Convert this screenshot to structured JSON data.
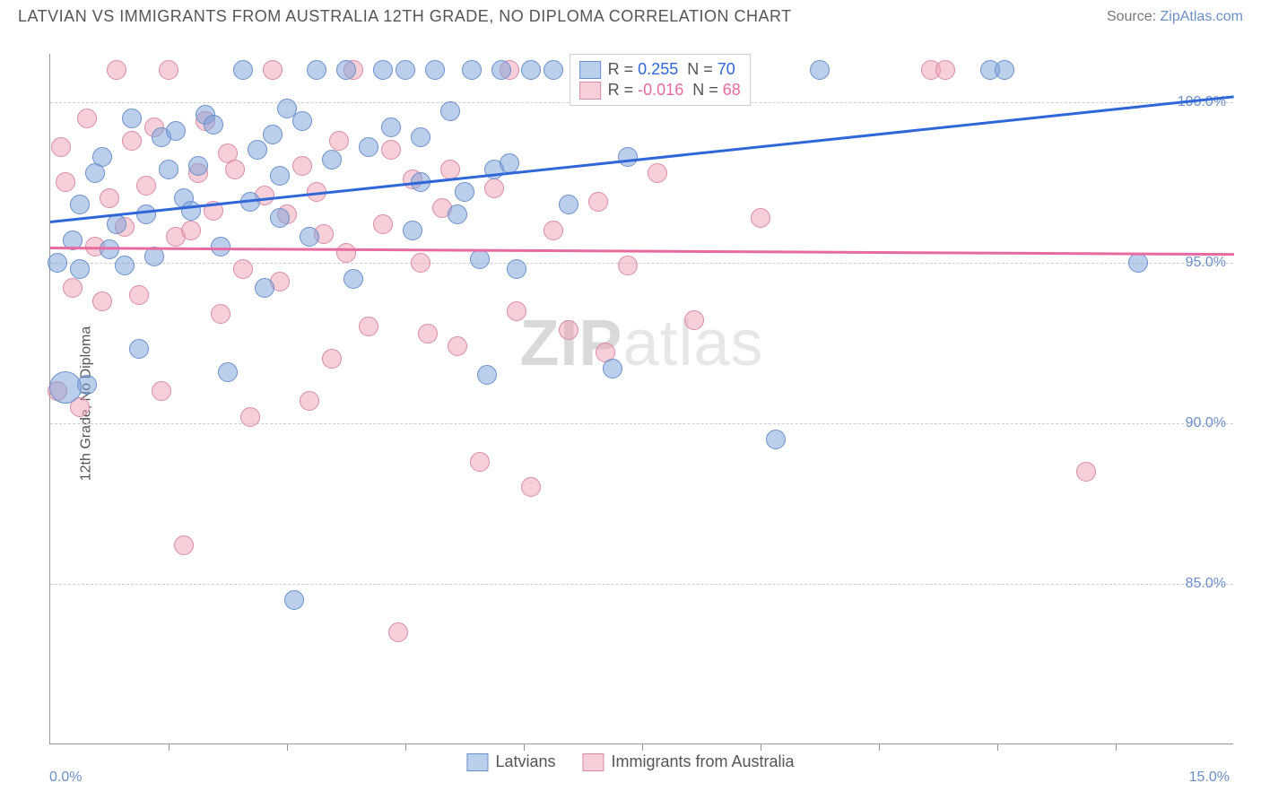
{
  "title": "LATVIAN VS IMMIGRANTS FROM AUSTRALIA 12TH GRADE, NO DIPLOMA CORRELATION CHART",
  "source_label": "Source: ",
  "source_link": "ZipAtlas.com",
  "ylabel": "12th Grade, No Diploma",
  "watermark_bold": "ZIP",
  "watermark_rest": "atlas",
  "colors": {
    "blue_fill": "rgba(120,160,220,0.5)",
    "blue_stroke": "#6b8fc9",
    "pink_fill": "rgba(240,160,180,0.5)",
    "pink_stroke": "#d98ba5",
    "blue_line": "#2f67d8",
    "pink_line": "#e76aa0",
    "axis_text": "#6b8fc9",
    "grid": "#cccccc"
  },
  "chart": {
    "type": "scatter",
    "xlim": [
      0,
      16
    ],
    "ylim": [
      80,
      101.5
    ],
    "x_display_min": "0.0%",
    "x_display_max": "15.0%",
    "ytick_values": [
      85,
      90,
      95,
      100
    ],
    "ytick_labels": [
      "85.0%",
      "90.0%",
      "95.0%",
      "100.0%"
    ],
    "xtick_positions": [
      1.6,
      3.2,
      4.8,
      6.4,
      8.0,
      9.6,
      11.2,
      12.8,
      14.4
    ],
    "point_radius": 11,
    "background_color": "#ffffff"
  },
  "correlation_box": {
    "rows": [
      {
        "swatch": "blue",
        "r_label": "R =",
        "r": "0.255",
        "n_label": "N =",
        "n": "70"
      },
      {
        "swatch": "pink",
        "r_label": "R =",
        "r": "-0.016",
        "n_label": "N =",
        "n": "68"
      }
    ]
  },
  "legend_bottom": {
    "items": [
      {
        "swatch": "blue",
        "label": "Latvians"
      },
      {
        "swatch": "pink",
        "label": "Immigrants from Australia"
      }
    ]
  },
  "trend_lines": {
    "blue": {
      "x1": 0,
      "y1": 96.3,
      "x2": 16,
      "y2": 100.2
    },
    "pink": {
      "x1": 0,
      "y1": 95.5,
      "x2": 16,
      "y2": 95.3
    }
  },
  "series": {
    "blue": [
      {
        "x": 0.1,
        "y": 95.0
      },
      {
        "x": 0.3,
        "y": 95.7
      },
      {
        "x": 0.4,
        "y": 94.8
      },
      {
        "x": 0.5,
        "y": 91.2
      },
      {
        "x": 0.7,
        "y": 98.3
      },
      {
        "x": 0.8,
        "y": 95.4
      },
      {
        "x": 0.9,
        "y": 96.2
      },
      {
        "x": 1.0,
        "y": 94.9
      },
      {
        "x": 1.1,
        "y": 99.5
      },
      {
        "x": 1.2,
        "y": 92.3
      },
      {
        "x": 1.4,
        "y": 95.2
      },
      {
        "x": 1.5,
        "y": 98.9
      },
      {
        "x": 1.7,
        "y": 99.1
      },
      {
        "x": 1.8,
        "y": 97.0
      },
      {
        "x": 2.0,
        "y": 98.0
      },
      {
        "x": 2.1,
        "y": 99.6
      },
      {
        "x": 2.2,
        "y": 99.3
      },
      {
        "x": 2.4,
        "y": 91.6
      },
      {
        "x": 2.6,
        "y": 101.0
      },
      {
        "x": 2.8,
        "y": 98.5
      },
      {
        "x": 3.0,
        "y": 99.0
      },
      {
        "x": 3.1,
        "y": 96.4
      },
      {
        "x": 3.3,
        "y": 84.5
      },
      {
        "x": 3.4,
        "y": 99.4
      },
      {
        "x": 3.6,
        "y": 101.0
      },
      {
        "x": 3.8,
        "y": 98.2
      },
      {
        "x": 4.0,
        "y": 101.0
      },
      {
        "x": 4.3,
        "y": 98.6
      },
      {
        "x": 4.5,
        "y": 101.0
      },
      {
        "x": 4.8,
        "y": 101.0
      },
      {
        "x": 5.0,
        "y": 97.5
      },
      {
        "x": 5.2,
        "y": 101.0
      },
      {
        "x": 5.5,
        "y": 96.5
      },
      {
        "x": 5.7,
        "y": 101.0
      },
      {
        "x": 5.9,
        "y": 91.5
      },
      {
        "x": 6.1,
        "y": 101.0
      },
      {
        "x": 6.3,
        "y": 94.8
      },
      {
        "x": 6.5,
        "y": 101.0
      },
      {
        "x": 6.8,
        "y": 101.0
      },
      {
        "x": 7.0,
        "y": 96.8
      },
      {
        "x": 7.3,
        "y": 101.0
      },
      {
        "x": 7.6,
        "y": 91.7
      },
      {
        "x": 8.3,
        "y": 101.0
      },
      {
        "x": 9.8,
        "y": 89.5
      },
      {
        "x": 10.4,
        "y": 101.0
      },
      {
        "x": 12.7,
        "y": 101.0
      },
      {
        "x": 12.9,
        "y": 101.0
      },
      {
        "x": 14.7,
        "y": 95.0
      },
      {
        "x": 0.2,
        "y": 91.1,
        "r": 18
      },
      {
        "x": 3.1,
        "y": 97.7
      },
      {
        "x": 2.3,
        "y": 95.5
      },
      {
        "x": 1.9,
        "y": 96.6
      },
      {
        "x": 4.1,
        "y": 94.5
      },
      {
        "x": 4.6,
        "y": 99.2
      },
      {
        "x": 5.4,
        "y": 99.7
      },
      {
        "x": 6.0,
        "y": 97.9
      },
      {
        "x": 2.9,
        "y": 94.2
      },
      {
        "x": 3.5,
        "y": 95.8
      },
      {
        "x": 0.6,
        "y": 97.8
      },
      {
        "x": 1.3,
        "y": 96.5
      },
      {
        "x": 4.9,
        "y": 96.0
      },
      {
        "x": 7.8,
        "y": 98.3
      },
      {
        "x": 5.8,
        "y": 95.1
      },
      {
        "x": 2.7,
        "y": 96.9
      },
      {
        "x": 1.6,
        "y": 97.9
      },
      {
        "x": 3.2,
        "y": 99.8
      },
      {
        "x": 0.4,
        "y": 96.8
      },
      {
        "x": 5.0,
        "y": 98.9
      },
      {
        "x": 5.6,
        "y": 97.2
      },
      {
        "x": 6.2,
        "y": 98.1
      }
    ],
    "pink": [
      {
        "x": 0.2,
        "y": 97.5
      },
      {
        "x": 0.3,
        "y": 94.2
      },
      {
        "x": 0.5,
        "y": 99.5
      },
      {
        "x": 0.6,
        "y": 95.5
      },
      {
        "x": 0.7,
        "y": 93.8
      },
      {
        "x": 0.8,
        "y": 97.0
      },
      {
        "x": 0.9,
        "y": 101.0
      },
      {
        "x": 1.0,
        "y": 96.1
      },
      {
        "x": 1.1,
        "y": 98.8
      },
      {
        "x": 1.3,
        "y": 97.4
      },
      {
        "x": 1.4,
        "y": 99.2
      },
      {
        "x": 1.5,
        "y": 91.0
      },
      {
        "x": 1.6,
        "y": 101.0
      },
      {
        "x": 1.8,
        "y": 86.2
      },
      {
        "x": 2.0,
        "y": 97.8
      },
      {
        "x": 2.2,
        "y": 96.6
      },
      {
        "x": 2.4,
        "y": 98.4
      },
      {
        "x": 2.6,
        "y": 94.8
      },
      {
        "x": 2.7,
        "y": 90.2
      },
      {
        "x": 2.9,
        "y": 97.1
      },
      {
        "x": 3.0,
        "y": 101.0
      },
      {
        "x": 3.2,
        "y": 96.5
      },
      {
        "x": 3.4,
        "y": 98.0
      },
      {
        "x": 3.5,
        "y": 90.7
      },
      {
        "x": 3.7,
        "y": 95.9
      },
      {
        "x": 3.9,
        "y": 98.8
      },
      {
        "x": 4.1,
        "y": 101.0
      },
      {
        "x": 4.3,
        "y": 93.0
      },
      {
        "x": 4.5,
        "y": 96.2
      },
      {
        "x": 4.7,
        "y": 83.5
      },
      {
        "x": 4.9,
        "y": 97.6
      },
      {
        "x": 5.1,
        "y": 92.8
      },
      {
        "x": 5.3,
        "y": 96.7
      },
      {
        "x": 5.5,
        "y": 92.4
      },
      {
        "x": 5.8,
        "y": 88.8
      },
      {
        "x": 6.0,
        "y": 97.3
      },
      {
        "x": 6.2,
        "y": 101.0
      },
      {
        "x": 6.5,
        "y": 88.0
      },
      {
        "x": 6.8,
        "y": 96.0
      },
      {
        "x": 7.0,
        "y": 92.9
      },
      {
        "x": 7.2,
        "y": 101.0
      },
      {
        "x": 7.5,
        "y": 92.2
      },
      {
        "x": 7.8,
        "y": 94.9
      },
      {
        "x": 8.2,
        "y": 97.8
      },
      {
        "x": 8.3,
        "y": 101.0
      },
      {
        "x": 9.6,
        "y": 96.4
      },
      {
        "x": 11.9,
        "y": 101.0
      },
      {
        "x": 12.1,
        "y": 101.0
      },
      {
        "x": 14.0,
        "y": 88.5
      },
      {
        "x": 0.1,
        "y": 91.0
      },
      {
        "x": 0.4,
        "y": 90.5
      },
      {
        "x": 1.2,
        "y": 94.0
      },
      {
        "x": 1.7,
        "y": 95.8
      },
      {
        "x": 2.1,
        "y": 99.4
      },
      {
        "x": 2.5,
        "y": 97.9
      },
      {
        "x": 3.1,
        "y": 94.4
      },
      {
        "x": 3.6,
        "y": 97.2
      },
      {
        "x": 4.0,
        "y": 95.3
      },
      {
        "x": 4.6,
        "y": 98.5
      },
      {
        "x": 5.0,
        "y": 95.0
      },
      {
        "x": 5.4,
        "y": 97.9
      },
      {
        "x": 6.3,
        "y": 93.5
      },
      {
        "x": 7.4,
        "y": 96.9
      },
      {
        "x": 8.7,
        "y": 93.2
      },
      {
        "x": 2.3,
        "y": 93.4
      },
      {
        "x": 3.8,
        "y": 92.0
      },
      {
        "x": 0.15,
        "y": 98.6
      },
      {
        "x": 1.9,
        "y": 96.0
      }
    ]
  }
}
